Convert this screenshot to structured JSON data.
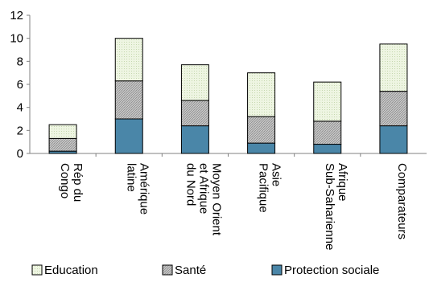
{
  "chart_data": {
    "type": "bar",
    "stacked": true,
    "title": "",
    "xlabel": "",
    "ylabel": "",
    "ylim": [
      0,
      12
    ],
    "yticks": [
      0,
      2,
      4,
      6,
      8,
      10,
      12
    ],
    "grid": false,
    "legend_position": "bottom",
    "categories": [
      [
        "Rép du",
        "Congo"
      ],
      [
        "Amérique",
        "latine"
      ],
      [
        "Moyen Orient",
        "et Afrique",
        "du Nord"
      ],
      [
        "Asie",
        "Pacifique"
      ],
      [
        "Afrique",
        "Sub-Saharienne"
      ],
      [
        "Comparateurs"
      ]
    ],
    "series": [
      {
        "name": "Protection sociale",
        "color": "#4a86a8",
        "pattern": "solid",
        "values": [
          0.2,
          3.0,
          2.4,
          0.9,
          0.8,
          2.4
        ]
      },
      {
        "name": "Santé",
        "color": "#c0c0c0",
        "pattern": "hatched",
        "values": [
          1.1,
          3.3,
          2.2,
          2.3,
          2.0,
          3.0
        ]
      },
      {
        "name": "Education",
        "color": "#eaf3dc",
        "pattern": "dotted",
        "values": [
          1.2,
          3.7,
          3.1,
          3.8,
          3.4,
          4.1
        ]
      }
    ],
    "legend_order": [
      "Education",
      "Santé",
      "Protection sociale"
    ]
  }
}
